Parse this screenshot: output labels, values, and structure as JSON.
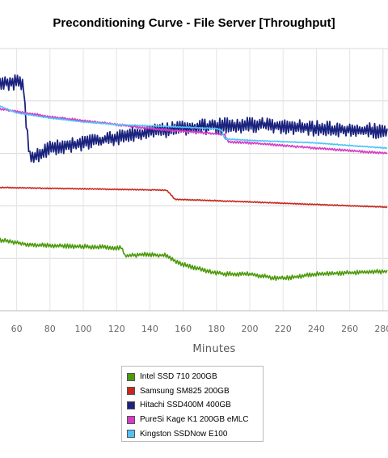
{
  "chart_data": {
    "type": "line",
    "title": "Preconditioning Curve - File Server [Throughput]",
    "xlabel": "Minutes",
    "ylabel": "",
    "x_ticks": [
      60,
      80,
      100,
      120,
      140,
      160,
      180,
      200,
      220,
      240,
      260,
      280
    ],
    "xlim": [
      50,
      283
    ],
    "grid": true,
    "legend_position": "bottom-center",
    "series": [
      {
        "name": "Intel SSD 710 200GB",
        "color": "#4c9a0c",
        "points": [
          [
            50,
            0.27
          ],
          [
            70,
            0.25
          ],
          [
            100,
            0.245
          ],
          [
            123,
            0.24
          ],
          [
            125,
            0.21
          ],
          [
            140,
            0.215
          ],
          [
            150,
            0.21
          ],
          [
            158,
            0.18
          ],
          [
            175,
            0.15
          ],
          [
            185,
            0.14
          ],
          [
            200,
            0.14
          ],
          [
            215,
            0.125
          ],
          [
            222,
            0.125
          ],
          [
            240,
            0.14
          ],
          [
            260,
            0.145
          ],
          [
            283,
            0.15
          ]
        ],
        "noise": 0.006
      },
      {
        "name": "Samsung SM825 200GB",
        "color": "#c8271e",
        "points": [
          [
            50,
            0.47
          ],
          [
            100,
            0.465
          ],
          [
            150,
            0.46
          ],
          [
            153,
            0.44
          ],
          [
            155,
            0.425
          ],
          [
            200,
            0.415
          ],
          [
            240,
            0.405
          ],
          [
            283,
            0.395
          ]
        ],
        "noise": 0.0015
      },
      {
        "name": "Hitachi SSD400M 400GB",
        "color": "#1a237e",
        "points": [
          [
            50,
            0.87
          ],
          [
            64,
            0.87
          ],
          [
            66,
            0.69
          ],
          [
            68,
            0.58
          ],
          [
            80,
            0.62
          ],
          [
            100,
            0.64
          ],
          [
            120,
            0.66
          ],
          [
            140,
            0.68
          ],
          [
            160,
            0.695
          ],
          [
            180,
            0.705
          ],
          [
            200,
            0.71
          ],
          [
            220,
            0.705
          ],
          [
            240,
            0.695
          ],
          [
            260,
            0.69
          ],
          [
            283,
            0.685
          ]
        ],
        "noise": 0.02
      },
      {
        "name": "PureSi Kage K1 200GB eMLC",
        "color": "#d63cc8",
        "points": [
          [
            50,
            0.77
          ],
          [
            60,
            0.76
          ],
          [
            80,
            0.74
          ],
          [
            100,
            0.725
          ],
          [
            120,
            0.71
          ],
          [
            140,
            0.695
          ],
          [
            160,
            0.685
          ],
          [
            180,
            0.675
          ],
          [
            185,
            0.67
          ],
          [
            187,
            0.645
          ],
          [
            200,
            0.64
          ],
          [
            220,
            0.63
          ],
          [
            240,
            0.62
          ],
          [
            260,
            0.61
          ],
          [
            283,
            0.6
          ]
        ],
        "noise": 0.003
      },
      {
        "name": "Kingston SSDNow E100",
        "color": "#4fc3f7",
        "points": [
          [
            50,
            0.78
          ],
          [
            60,
            0.755
          ],
          [
            80,
            0.735
          ],
          [
            100,
            0.72
          ],
          [
            120,
            0.71
          ],
          [
            140,
            0.705
          ],
          [
            160,
            0.7
          ],
          [
            180,
            0.695
          ],
          [
            183,
            0.69
          ],
          [
            185,
            0.655
          ],
          [
            200,
            0.65
          ],
          [
            220,
            0.645
          ],
          [
            240,
            0.64
          ],
          [
            260,
            0.63
          ],
          [
            283,
            0.62
          ]
        ],
        "noise": 0.0015
      }
    ]
  }
}
